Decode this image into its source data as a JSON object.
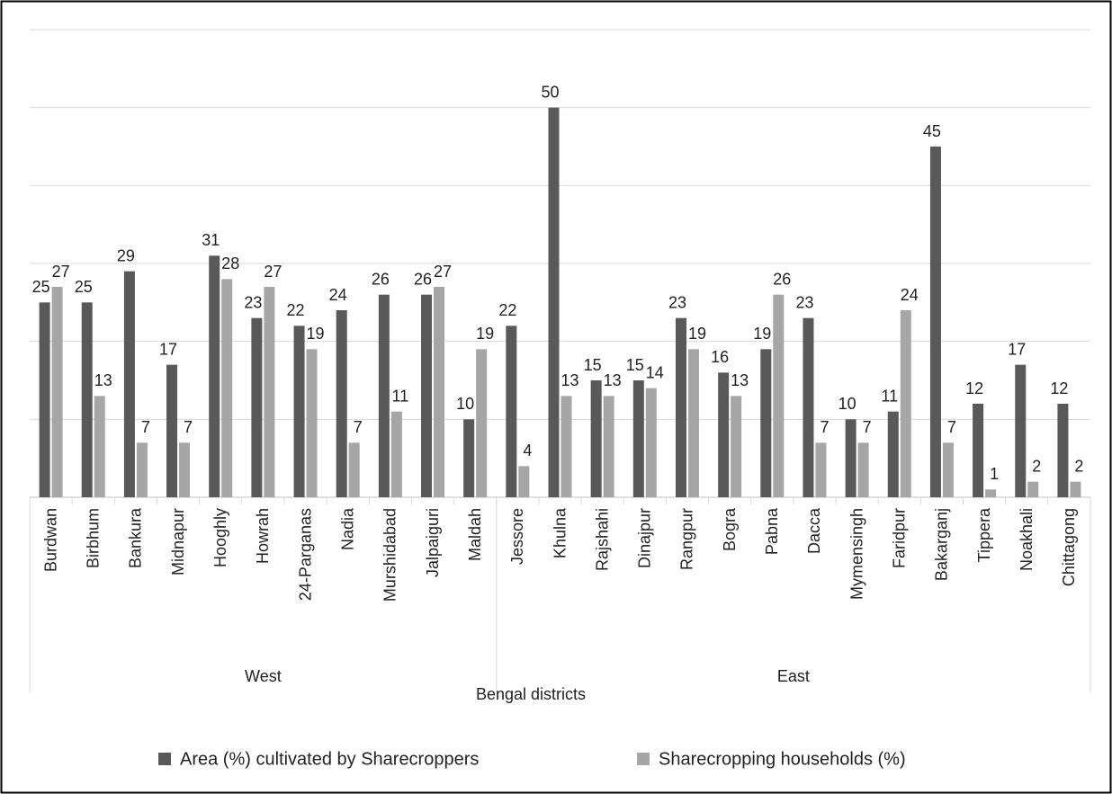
{
  "chart_data": {
    "type": "bar",
    "x_label": "Bengal districts",
    "groups": [
      {
        "name": "West",
        "categories": [
          "Burdwan",
          "Birbhum",
          "Bankura",
          "Midnapur",
          "Hooghly",
          "Howrah",
          "24-Parganas",
          "Nadia",
          "Murshidabad",
          "Jalpaiguri",
          "Maldah"
        ]
      },
      {
        "name": "East",
        "categories": [
          "Jessore",
          "Khulna",
          "Rajshahi",
          "Dinajpur",
          "Rangpur",
          "Bogra",
          "Pabna",
          "Dacca",
          "Mymensingh",
          "Faridpur",
          "Bakarganj",
          "Tippera",
          "Noakhali",
          "Chittagong"
        ]
      }
    ],
    "series": [
      {
        "name": "Area (%) cultivated by Sharecroppers",
        "color": "#595959",
        "values": [
          25,
          25,
          29,
          17,
          31,
          23,
          22,
          24,
          26,
          26,
          10,
          22,
          50,
          15,
          15,
          23,
          16,
          19,
          23,
          10,
          11,
          45,
          12,
          17,
          12
        ]
      },
      {
        "name": "Sharecropping households (%)",
        "color": "#a6a6a6",
        "values": [
          27,
          13,
          7,
          7,
          28,
          27,
          19,
          7,
          11,
          27,
          19,
          4,
          13,
          13,
          14,
          19,
          13,
          26,
          7,
          7,
          24,
          7,
          1,
          2,
          2
        ]
      }
    ],
    "ylim": [
      0,
      60
    ],
    "yticks": [
      0,
      10,
      20,
      30,
      40,
      50,
      60
    ],
    "grid": true,
    "legend": "bottom"
  }
}
